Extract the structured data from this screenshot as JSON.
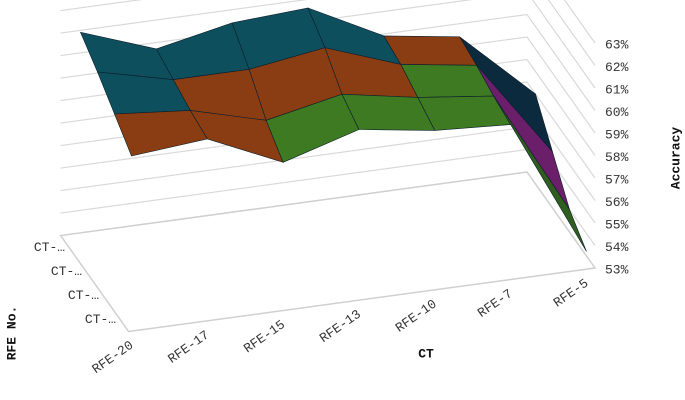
{
  "chart_data": {
    "type": "surface",
    "x_label": "CT",
    "y_label": "Accuracy",
    "z_label": "RFE No.",
    "categories": [
      "RFE-20",
      "RFE-17",
      "RFE-15",
      "RFE-13",
      "RFE-10",
      "RFE-7",
      "RFE-5"
    ],
    "series": [
      {
        "name": "CT-…",
        "values": [
          60.2,
          60.5,
          59.0,
          60.0,
          59.5,
          59.3,
          53.2
        ]
      },
      {
        "name": "CT-…",
        "values": [
          61.0,
          60.7,
          59.8,
          60.5,
          59.9,
          59.5,
          54.0
        ]
      },
      {
        "name": "CT-…",
        "values": [
          61.8,
          61.0,
          61.0,
          61.5,
          60.3,
          59.8,
          55.5
        ]
      },
      {
        "name": "CT-…",
        "values": [
          62.5,
          61.3,
          62.0,
          62.2,
          60.5,
          60.0,
          57.0
        ]
      }
    ],
    "ylim": [
      53,
      63
    ],
    "yticks": [
      {
        "value": 53,
        "label": "53%"
      },
      {
        "value": 54,
        "label": "54%"
      },
      {
        "value": 55,
        "label": "55%"
      },
      {
        "value": 56,
        "label": "56%"
      },
      {
        "value": 57,
        "label": "57%"
      },
      {
        "value": 58,
        "label": "58%"
      },
      {
        "value": 59,
        "label": "59%"
      },
      {
        "value": 60,
        "label": "60%"
      },
      {
        "value": 61,
        "label": "61%"
      },
      {
        "value": 62,
        "label": "62%"
      },
      {
        "value": 63,
        "label": "63%"
      }
    ],
    "band_colors": [
      "#17375e",
      "#c0501c",
      "#1f7391",
      "#2f5e1e",
      "#6b1f6b",
      "#0c2a3e",
      "#3d7a22",
      "#8a3d12",
      "#0e4f5e",
      "#2b8ab8"
    ],
    "grid": true
  }
}
